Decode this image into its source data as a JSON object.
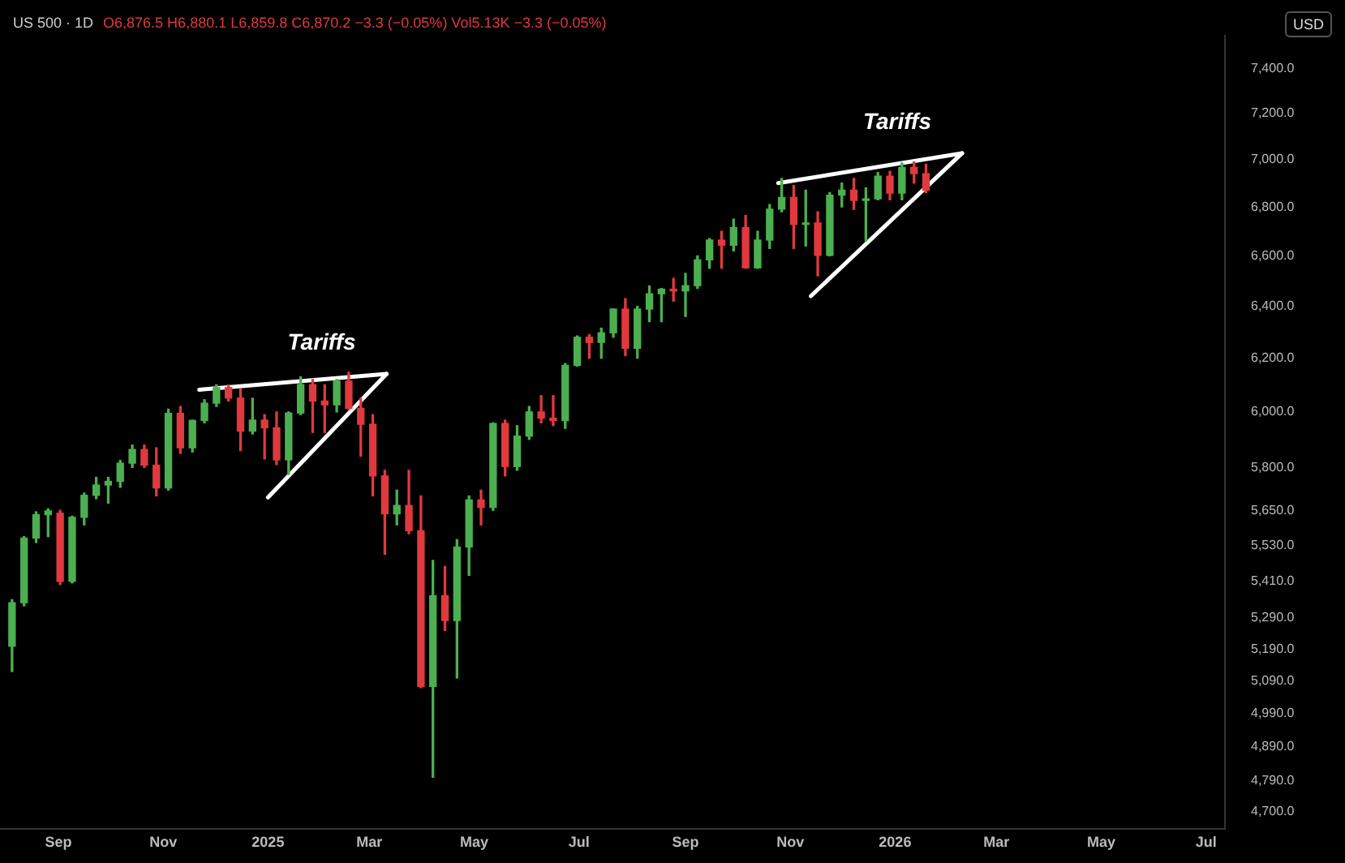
{
  "chart_data": {
    "type": "candlestick",
    "title": "US 500 · 1D",
    "subtitle": "O6,876.5 H6,880.1 L6,859.8 C6,870.2 −3.3 (−0.05%) Vol5.13K −3.3 (−0.05%)",
    "ylabel": "USD",
    "log": true,
    "grid": false,
    "legend": false,
    "xlim": [
      "2024-07-29",
      "2026-07-12"
    ],
    "xticks": [
      {
        "value": "2024-09-01",
        "label": "Sep"
      },
      {
        "value": "2024-11-01",
        "label": "Nov"
      },
      {
        "value": "2025-01-01",
        "label": "2025"
      },
      {
        "value": "2025-03-01",
        "label": "Mar"
      },
      {
        "value": "2025-05-01",
        "label": "May"
      },
      {
        "value": "2025-07-01",
        "label": "Jul"
      },
      {
        "value": "2025-09-01",
        "label": "Sep"
      },
      {
        "value": "2025-11-01",
        "label": "Nov"
      },
      {
        "value": "2026-01-01",
        "label": "2026"
      },
      {
        "value": "2026-03-01",
        "label": "Mar"
      },
      {
        "value": "2026-05-01",
        "label": "May"
      },
      {
        "value": "2026-07-01",
        "label": "Jul"
      }
    ],
    "ylim": [
      4650,
      7550
    ],
    "yticks": [
      {
        "value": 4700,
        "label": "4,700.0"
      },
      {
        "value": 4790,
        "label": "4,790.0"
      },
      {
        "value": 4890,
        "label": "4,890.0"
      },
      {
        "value": 4990,
        "label": "4,990.0"
      },
      {
        "value": 5090,
        "label": "5,090.0"
      },
      {
        "value": 5190,
        "label": "5,190.0"
      },
      {
        "value": 5290,
        "label": "5,290.0"
      },
      {
        "value": 5410,
        "label": "5,410.0"
      },
      {
        "value": 5530,
        "label": "5,530.0"
      },
      {
        "value": 5650,
        "label": "5,650.0"
      },
      {
        "value": 5800,
        "label": "5,800.0"
      },
      {
        "value": 6000,
        "label": "6,000.0"
      },
      {
        "value": 6200,
        "label": "6,200.0"
      },
      {
        "value": 6400,
        "label": "6,400.0"
      },
      {
        "value": 6600,
        "label": "6,600.0"
      },
      {
        "value": 6800,
        "label": "6,800.0"
      },
      {
        "value": 7000,
        "label": "7,000.0"
      },
      {
        "value": 7200,
        "label": "7,200.0"
      },
      {
        "value": 7400,
        "label": "7,400.0"
      }
    ],
    "annotations": [
      {
        "text": "Tariffs",
        "x": "2025-03-11",
        "y": 6141
      },
      {
        "text": "Tariffs",
        "x": "2026-02-09",
        "y": 7027
      }
    ],
    "series": [
      {
        "x": [
          "2024-08-05",
          "2024-08-12",
          "2024-08-19",
          "2024-08-26",
          "2024-09-02",
          "2024-09-09",
          "2024-09-16",
          "2024-09-23",
          "2024-09-30",
          "2024-10-07",
          "2024-10-14",
          "2024-10-21",
          "2024-10-28",
          "2024-11-04",
          "2024-11-11",
          "2024-11-18",
          "2024-11-25",
          "2024-12-02",
          "2024-12-09",
          "2024-12-16",
          "2024-12-23",
          "2024-12-30",
          "2025-01-06",
          "2025-01-13",
          "2025-01-20",
          "2025-01-27",
          "2025-02-03",
          "2025-02-10",
          "2025-02-17",
          "2025-02-24",
          "2025-03-03",
          "2025-03-10",
          "2025-03-17",
          "2025-03-24",
          "2025-03-31",
          "2025-04-07",
          "2025-04-14",
          "2025-04-21",
          "2025-04-28",
          "2025-05-05",
          "2025-05-12",
          "2025-05-19",
          "2025-05-26",
          "2025-06-02",
          "2025-06-09",
          "2025-06-16",
          "2025-06-23",
          "2025-06-30",
          "2025-07-07",
          "2025-07-14",
          "2025-07-21",
          "2025-07-28",
          "2025-08-04",
          "2025-08-11",
          "2025-08-18",
          "2025-08-25",
          "2025-09-01",
          "2025-09-08",
          "2025-09-15",
          "2025-09-22",
          "2025-09-29",
          "2025-10-06",
          "2025-10-13",
          "2025-10-20",
          "2025-10-27",
          "2025-11-03",
          "2025-11-10",
          "2025-11-17",
          "2025-11-24",
          "2025-12-01",
          "2025-12-08",
          "2025-12-15",
          "2025-12-22",
          "2025-12-29",
          "2026-01-05",
          "2026-01-12",
          "2026-01-19"
        ],
        "ohlc": [
          [
            5200,
            5350,
            5120,
            5340
          ],
          [
            5340,
            5560,
            5330,
            5555
          ],
          [
            5555,
            5645,
            5540,
            5635
          ],
          [
            5635,
            5655,
            5560,
            5648
          ],
          [
            5640,
            5650,
            5400,
            5410
          ],
          [
            5410,
            5630,
            5405,
            5626
          ],
          [
            5626,
            5710,
            5600,
            5702
          ],
          [
            5702,
            5765,
            5690,
            5738
          ],
          [
            5738,
            5765,
            5675,
            5751
          ],
          [
            5751,
            5825,
            5730,
            5815
          ],
          [
            5815,
            5880,
            5800,
            5864
          ],
          [
            5864,
            5880,
            5800,
            5808
          ],
          [
            5808,
            5870,
            5700,
            5728
          ],
          [
            5728,
            6010,
            5720,
            5995
          ],
          [
            5995,
            6020,
            5850,
            5870
          ],
          [
            5870,
            5970,
            5855,
            5969
          ],
          [
            5969,
            6045,
            5960,
            6032
          ],
          [
            6032,
            6100,
            6020,
            6090
          ],
          [
            6090,
            6100,
            6040,
            6051
          ],
          [
            6051,
            6085,
            5860,
            5930
          ],
          [
            5930,
            6050,
            5920,
            5970
          ],
          [
            5970,
            5990,
            5830,
            5942
          ],
          [
            5942,
            6000,
            5810,
            5827
          ],
          [
            5827,
            6000,
            5775,
            5996
          ],
          [
            5996,
            6130,
            5990,
            6101
          ],
          [
            6101,
            6120,
            5925,
            6040
          ],
          [
            6040,
            6100,
            5925,
            6026
          ],
          [
            6026,
            6120,
            6000,
            6114
          ],
          [
            6114,
            6147,
            6010,
            6013
          ],
          [
            6013,
            6050,
            5840,
            5955
          ],
          [
            5955,
            5990,
            5700,
            5770
          ],
          [
            5770,
            5790,
            5500,
            5638
          ],
          [
            5638,
            5720,
            5600,
            5667
          ],
          [
            5667,
            5790,
            5570,
            5580
          ],
          [
            5580,
            5700,
            5070,
            5074
          ],
          [
            5074,
            5480,
            4800,
            5363
          ],
          [
            5363,
            5460,
            5250,
            5282
          ],
          [
            5282,
            5550,
            5100,
            5525
          ],
          [
            5525,
            5700,
            5430,
            5686
          ],
          [
            5686,
            5720,
            5600,
            5660
          ],
          [
            5660,
            5960,
            5650,
            5958
          ],
          [
            5958,
            5970,
            5770,
            5803
          ],
          [
            5803,
            5950,
            5790,
            5912
          ],
          [
            5912,
            6020,
            5900,
            6000
          ],
          [
            6000,
            6060,
            5960,
            5977
          ],
          [
            5977,
            6060,
            5950,
            5968
          ],
          [
            5968,
            6180,
            5940,
            6173
          ],
          [
            6173,
            6285,
            6170,
            6280
          ],
          [
            6280,
            6290,
            6200,
            6260
          ],
          [
            6260,
            6315,
            6200,
            6297
          ],
          [
            6297,
            6390,
            6280,
            6389
          ],
          [
            6389,
            6430,
            6210,
            6238
          ],
          [
            6238,
            6400,
            6200,
            6389
          ],
          [
            6389,
            6480,
            6340,
            6449
          ],
          [
            6449,
            6470,
            6340,
            6467
          ],
          [
            6467,
            6510,
            6420,
            6460
          ],
          [
            6460,
            6530,
            6360,
            6481
          ],
          [
            6481,
            6600,
            6470,
            6584
          ],
          [
            6584,
            6670,
            6550,
            6664
          ],
          [
            6664,
            6700,
            6550,
            6643
          ],
          [
            6643,
            6750,
            6620,
            6715
          ],
          [
            6715,
            6765,
            6550,
            6552
          ],
          [
            6552,
            6700,
            6550,
            6664
          ],
          [
            6664,
            6810,
            6630,
            6791
          ],
          [
            6791,
            6920,
            6780,
            6840
          ],
          [
            6840,
            6890,
            6630,
            6728
          ],
          [
            6728,
            6870,
            6640,
            6734
          ],
          [
            6734,
            6780,
            6520,
            6602
          ],
          [
            6602,
            6860,
            6600,
            6849
          ],
          [
            6849,
            6900,
            6800,
            6870
          ],
          [
            6870,
            6920,
            6790,
            6827
          ],
          [
            6827,
            6880,
            6660,
            6834
          ],
          [
            6834,
            6945,
            6830,
            6929
          ],
          [
            6929,
            6950,
            6830,
            6858
          ],
          [
            6858,
            6985,
            6830,
            6966
          ],
          [
            6966,
            6990,
            6900,
            6940
          ],
          [
            6940,
            6980,
            6860,
            6870
          ]
        ],
        "colors": [
          "#4caf50",
          "#4caf50",
          "#4caf50",
          "#4caf50",
          "#e0393e",
          "#4caf50",
          "#4caf50",
          "#4caf50",
          "#4caf50",
          "#4caf50",
          "#4caf50",
          "#e0393e",
          "#e0393e",
          "#4caf50",
          "#e0393e",
          "#4caf50",
          "#4caf50",
          "#4caf50",
          "#e0393e",
          "#e0393e",
          "#4caf50",
          "#e0393e",
          "#e0393e",
          "#4caf50",
          "#4caf50",
          "#e0393e",
          "#e0393e",
          "#4caf50",
          "#e0393e",
          "#e0393e",
          "#e0393e",
          "#e0393e",
          "#4caf50",
          "#e0393e",
          "#e0393e",
          "#4caf50",
          "#e0393e",
          "#4caf50",
          "#4caf50",
          "#e0393e",
          "#4caf50",
          "#e0393e",
          "#4caf50",
          "#4caf50",
          "#e0393e",
          "#e0393e",
          "#4caf50",
          "#4caf50",
          "#e0393e",
          "#4caf50",
          "#4caf50",
          "#e0393e",
          "#4caf50",
          "#4caf50",
          "#4caf50",
          "#e0393e",
          "#4caf50",
          "#4caf50",
          "#4caf50",
          "#e0393e",
          "#4caf50",
          "#e0393e",
          "#4caf50",
          "#4caf50",
          "#4caf50",
          "#e0393e",
          "#4caf50",
          "#e0393e",
          "#4caf50",
          "#4caf50",
          "#e0393e",
          "#4caf50",
          "#4caf50",
          "#e0393e",
          "#4caf50",
          "#e0393e",
          "#e0393e"
        ]
      },
      {
        "type": "line",
        "color": "#ffffff",
        "x": [
          "2024-11-22",
          "2025-03-11"
        ],
        "values": [
          6082,
          6141
        ]
      },
      {
        "type": "line",
        "color": "#ffffff",
        "x": [
          "2025-01-01",
          "2025-03-11"
        ],
        "values": [
          5695,
          6141
        ]
      },
      {
        "type": "line",
        "color": "#ffffff",
        "x": [
          "2025-10-25",
          "2026-02-09"
        ],
        "values": [
          6900,
          7027
        ]
      },
      {
        "type": "line",
        "color": "#ffffff",
        "x": [
          "2025-11-13",
          "2026-02-09"
        ],
        "values": [
          6440,
          7027
        ]
      }
    ]
  }
}
